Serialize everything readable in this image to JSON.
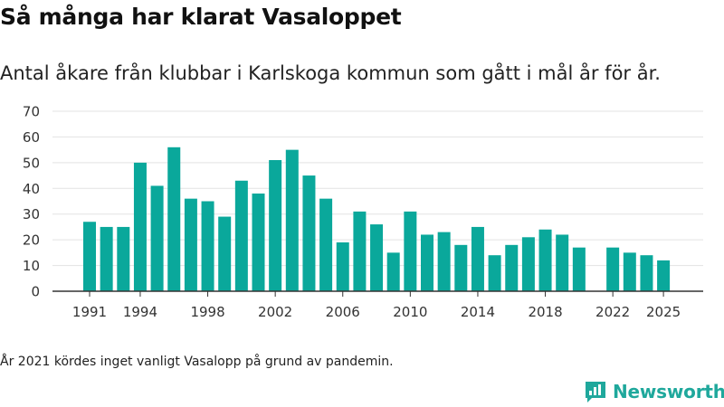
{
  "header": {
    "title": "Så många har klarat Vasaloppet",
    "subtitle": "Antal åkare från klubbar i Karlskoga kommun som gått i mål år för år."
  },
  "footnote": "År 2021 kördes inget vanligt Vasalopp på grund av pandemin.",
  "brand": {
    "name": "Newsworthy",
    "icon": "newsworthy-logo-icon"
  },
  "colors": {
    "bar": "#0aa89b",
    "grid": "#e3e3e3",
    "axis": "#333333",
    "brand": "#1fa89c"
  },
  "chart_data": {
    "type": "bar",
    "title": "Så många har klarat Vasaloppet",
    "xlabel": "",
    "ylabel": "",
    "ylim": [
      0,
      70
    ],
    "yticks": [
      0,
      10,
      20,
      30,
      40,
      50,
      60,
      70
    ],
    "xticks": [
      1991,
      1994,
      1998,
      2002,
      2006,
      2010,
      2014,
      2018,
      2022,
      2025
    ],
    "categories": [
      1991,
      1992,
      1993,
      1994,
      1995,
      1996,
      1997,
      1998,
      1999,
      2000,
      2001,
      2002,
      2003,
      2004,
      2005,
      2006,
      2007,
      2008,
      2009,
      2010,
      2011,
      2012,
      2013,
      2014,
      2015,
      2016,
      2017,
      2018,
      2019,
      2020,
      2021,
      2022,
      2023,
      2024,
      2025
    ],
    "values": [
      27,
      25,
      25,
      50,
      41,
      56,
      36,
      35,
      29,
      43,
      38,
      51,
      55,
      45,
      36,
      19,
      31,
      26,
      15,
      31,
      22,
      23,
      18,
      25,
      14,
      18,
      21,
      24,
      22,
      17,
      null,
      17,
      15,
      14,
      12
    ],
    "grid": true,
    "legend": "none"
  }
}
